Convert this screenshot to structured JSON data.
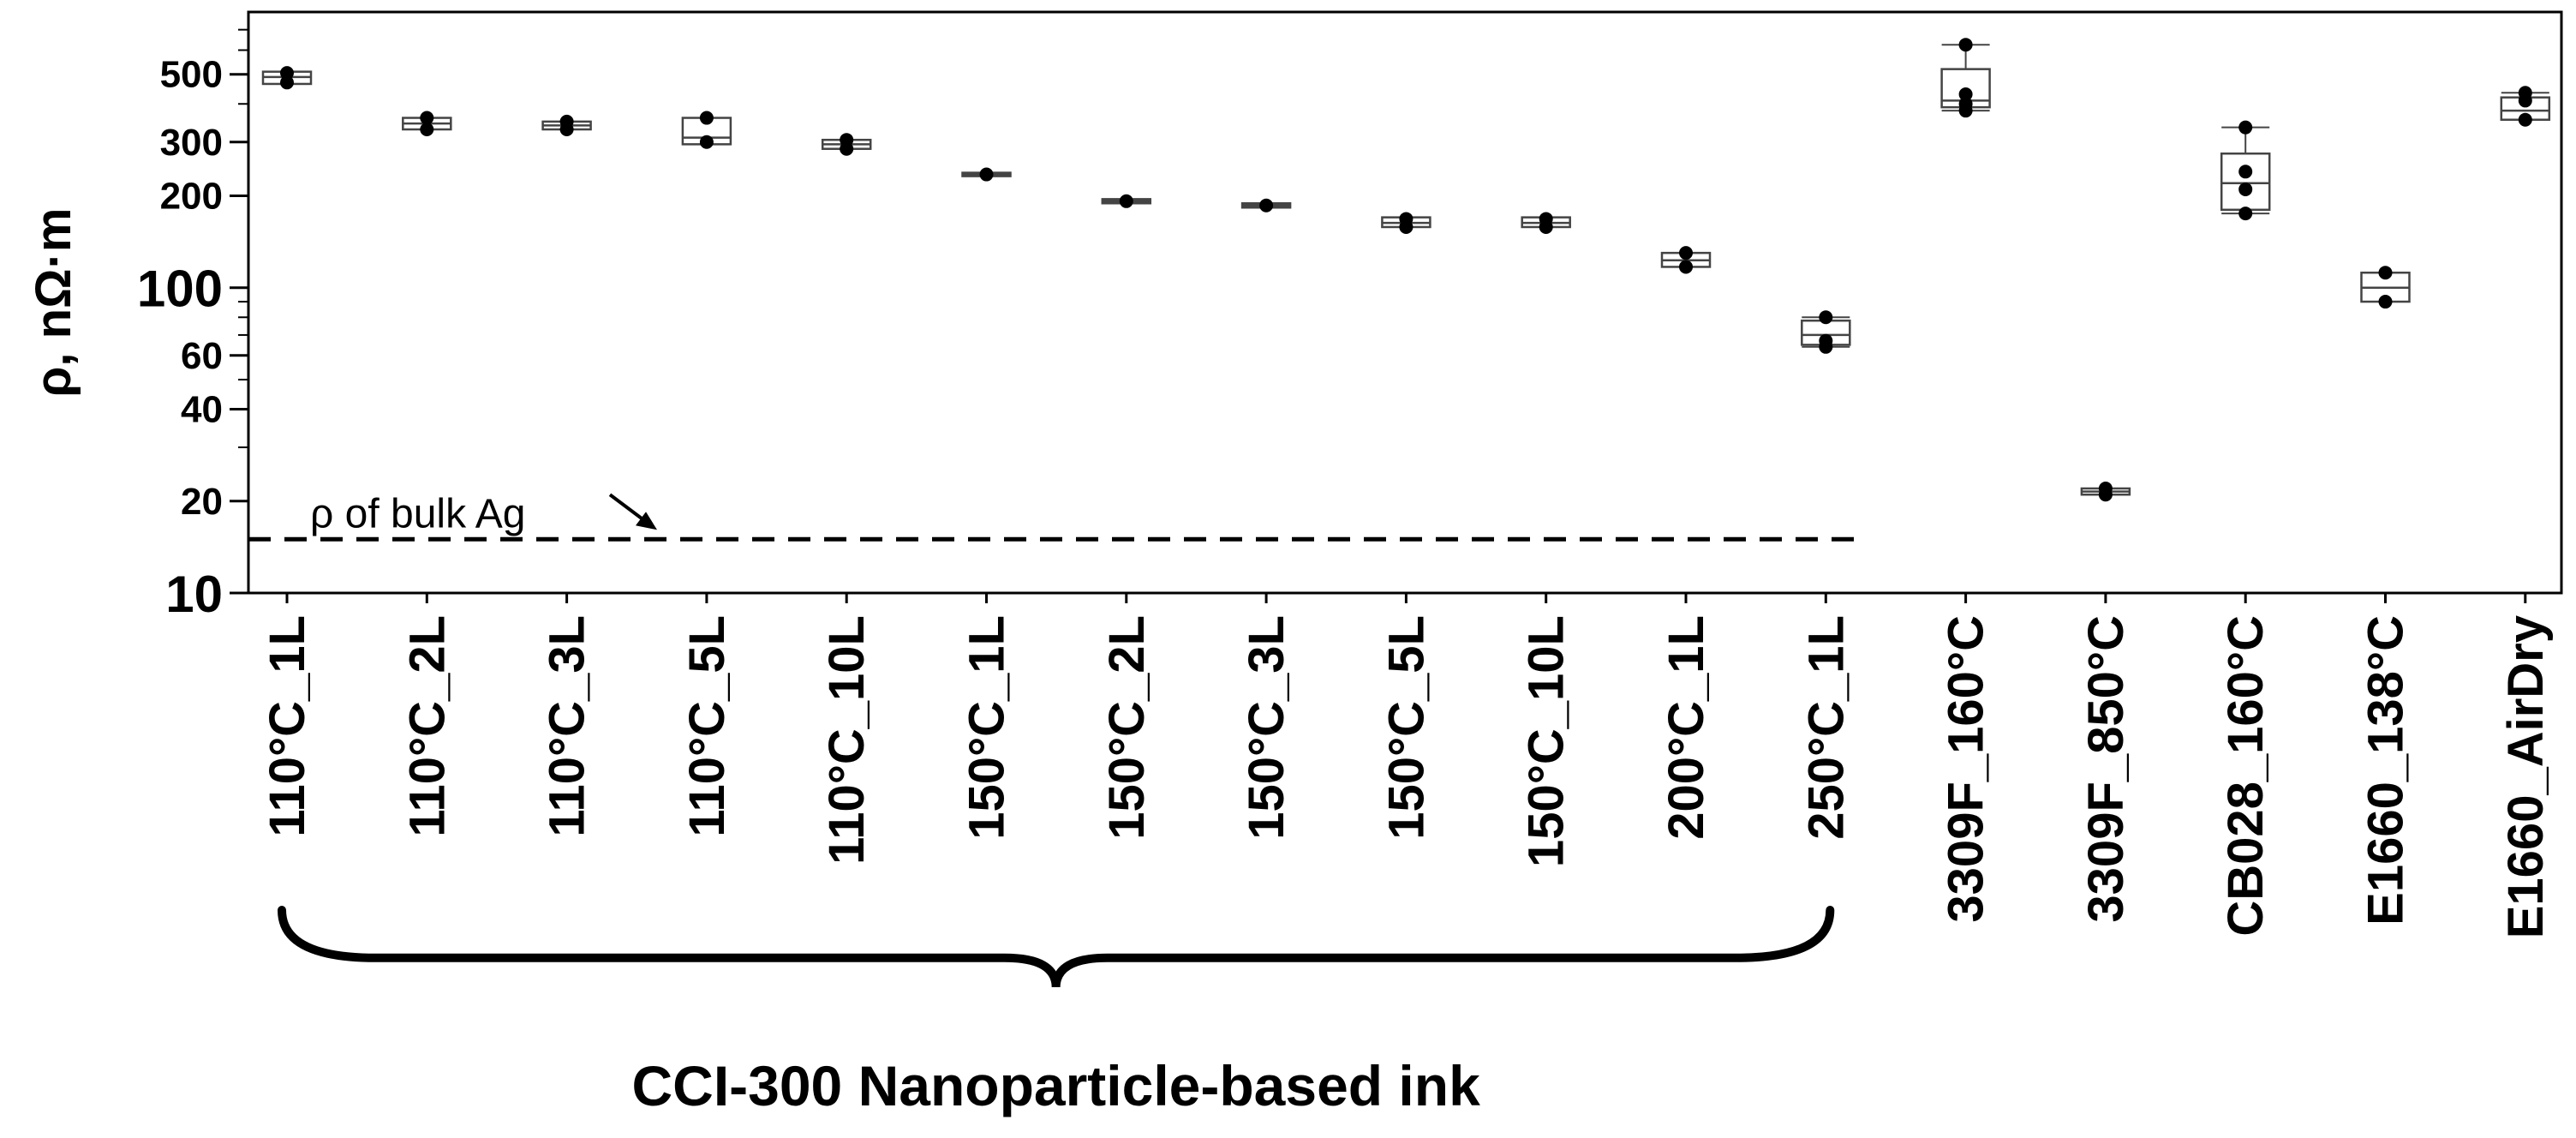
{
  "chart_data": {
    "type": "box",
    "y_scale": "log",
    "ylabel": "ρ, nΩ·m",
    "ylim": [
      10,
      800
    ],
    "y_ticks": [
      {
        "value": 10,
        "label": "10",
        "major": true
      },
      {
        "value": 20,
        "label": "20",
        "major": false
      },
      {
        "value": 40,
        "label": "40",
        "major": false
      },
      {
        "value": 60,
        "label": "60",
        "major": false
      },
      {
        "value": 100,
        "label": "100",
        "major": true
      },
      {
        "value": 200,
        "label": "200",
        "major": false
      },
      {
        "value": 300,
        "label": "300",
        "major": false
      },
      {
        "value": 500,
        "label": "500",
        "major": false
      }
    ],
    "categories": [
      {
        "label": "110°C_1L",
        "q1": 465,
        "median": 490,
        "q3": 510,
        "whisker_low": 465,
        "whisker_high": 510,
        "points": [
          470,
          505
        ]
      },
      {
        "label": "110°C_2L",
        "q1": 330,
        "median": 345,
        "q3": 360,
        "whisker_low": 330,
        "whisker_high": 360,
        "points": [
          330,
          360
        ]
      },
      {
        "label": "110°C_3L",
        "q1": 330,
        "median": 340,
        "q3": 350,
        "whisker_low": 330,
        "whisker_high": 350,
        "points": [
          330,
          350
        ]
      },
      {
        "label": "110°C_5L",
        "q1": 295,
        "median": 310,
        "q3": 360,
        "whisker_low": 295,
        "whisker_high": 360,
        "points": [
          300,
          360
        ]
      },
      {
        "label": "110°C_10L",
        "q1": 285,
        "median": 295,
        "q3": 305,
        "whisker_low": 285,
        "whisker_high": 305,
        "points": [
          285,
          305
        ]
      },
      {
        "label": "150°C_1L",
        "q1": 232,
        "median": 235,
        "q3": 238,
        "whisker_low": 232,
        "whisker_high": 238,
        "points": [
          235
        ]
      },
      {
        "label": "150°C_2L",
        "q1": 189,
        "median": 192,
        "q3": 195,
        "whisker_low": 189,
        "whisker_high": 195,
        "points": [
          192
        ]
      },
      {
        "label": "150°C_3L",
        "q1": 183,
        "median": 186,
        "q3": 189,
        "whisker_low": 183,
        "whisker_high": 189,
        "points": [
          186
        ]
      },
      {
        "label": "150°C_5L",
        "q1": 158,
        "median": 163,
        "q3": 170,
        "whisker_low": 158,
        "whisker_high": 170,
        "points": [
          158,
          168
        ]
      },
      {
        "label": "150°C_10L",
        "q1": 158,
        "median": 163,
        "q3": 170,
        "whisker_low": 158,
        "whisker_high": 170,
        "points": [
          158,
          168
        ]
      },
      {
        "label": "200°C_1L",
        "q1": 117,
        "median": 123,
        "q3": 130,
        "whisker_low": 117,
        "whisker_high": 130,
        "points": [
          117,
          130
        ]
      },
      {
        "label": "250°C_1L",
        "q1": 65,
        "median": 70,
        "q3": 78,
        "whisker_low": 64,
        "whisker_high": 80,
        "points": [
          64,
          67,
          80
        ]
      },
      {
        "label": "3309F_160°C",
        "q1": 390,
        "median": 410,
        "q3": 520,
        "whisker_low": 380,
        "whisker_high": 625,
        "points": [
          380,
          400,
          430,
          625
        ]
      },
      {
        "label": "3309F_850°C",
        "q1": 21,
        "median": 21.5,
        "q3": 22,
        "whisker_low": 21,
        "whisker_high": 22,
        "points": [
          21,
          22
        ]
      },
      {
        "label": "CB028_160°C",
        "q1": 180,
        "median": 220,
        "q3": 275,
        "whisker_low": 175,
        "whisker_high": 335,
        "points": [
          175,
          210,
          240,
          335
        ]
      },
      {
        "label": "E1660_138°C",
        "q1": 90,
        "median": 100,
        "q3": 112,
        "whisker_low": 90,
        "whisker_high": 112,
        "points": [
          90,
          112
        ]
      },
      {
        "label": "E1660_AirDry",
        "q1": 355,
        "median": 380,
        "q3": 420,
        "whisker_low": 355,
        "whisker_high": 435,
        "points": [
          355,
          410,
          435
        ]
      }
    ],
    "reference_line": {
      "value": 15,
      "label": "ρ of bulk Ag",
      "style": "dashed"
    },
    "group_brace": {
      "label": "CCI-300 Nanoparticle-based ink",
      "from_index": 0,
      "to_index": 11
    }
  }
}
